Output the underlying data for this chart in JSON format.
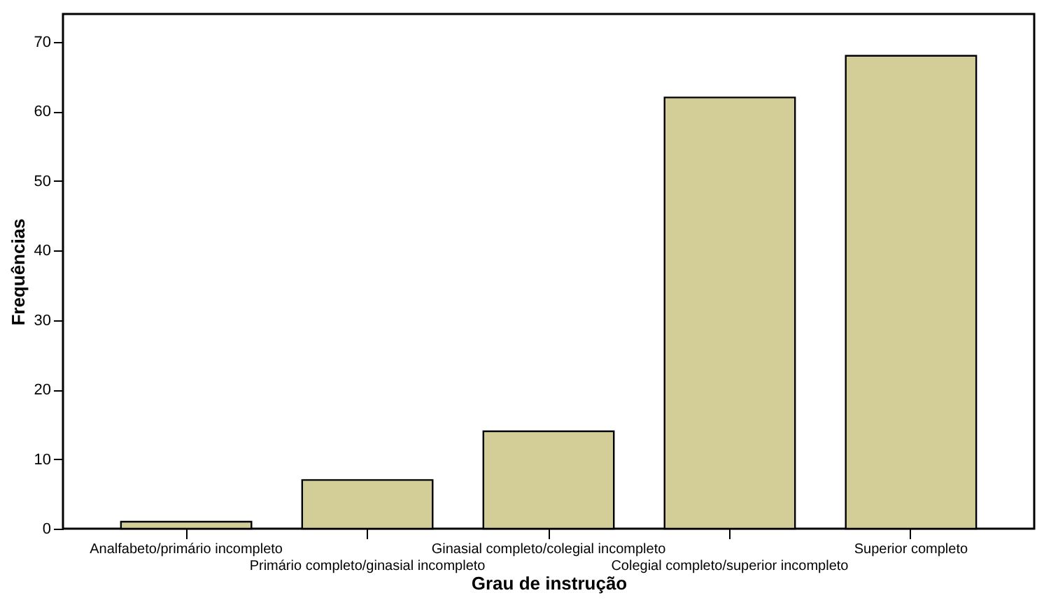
{
  "chart_data": {
    "type": "bar",
    "xlabel": "Grau de instrução",
    "ylabel": "Frequências",
    "categories": [
      "Analfabeto/primário incompleto",
      "Primário completo/ginasial incompleto",
      "Ginasial completo/colegial incompleto",
      "Colegial completo/superior incompleto",
      "Superior completo"
    ],
    "values": [
      1,
      7,
      14,
      62,
      68
    ],
    "color": "#d3ce98",
    "ylim": [
      0,
      74
    ],
    "yticks": [
      0,
      10,
      20,
      30,
      40,
      50,
      60,
      70
    ],
    "grid": false
  }
}
